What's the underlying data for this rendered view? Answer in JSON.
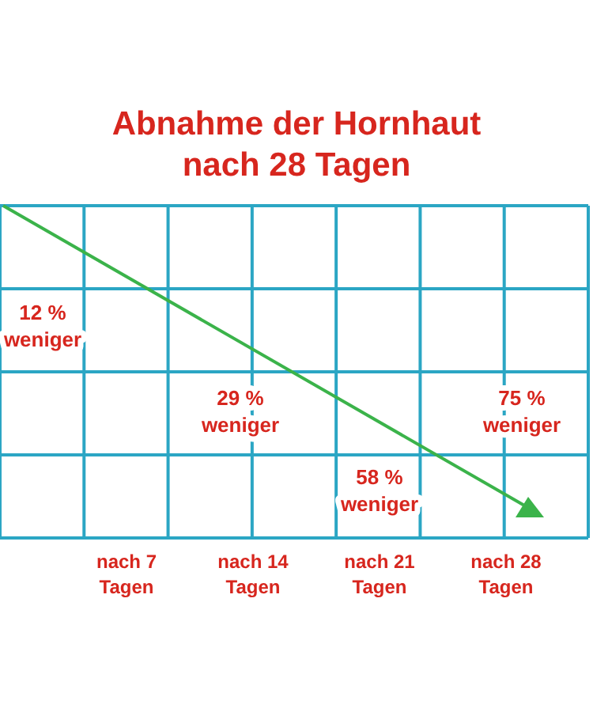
{
  "chart_data": {
    "type": "other",
    "title": "Abnahme der Hornhaut nach 28 Tagen",
    "categories": [
      "nach 7 Tagen",
      "nach 14 Tagen",
      "nach 21 Tagen",
      "nach 28 Tagen"
    ],
    "values": [
      12,
      29,
      58,
      75
    ],
    "value_labels": [
      "12 % weniger",
      "29 % weniger",
      "58 % weniger",
      "75 % weniger"
    ],
    "color": "#d7261e"
  }
}
